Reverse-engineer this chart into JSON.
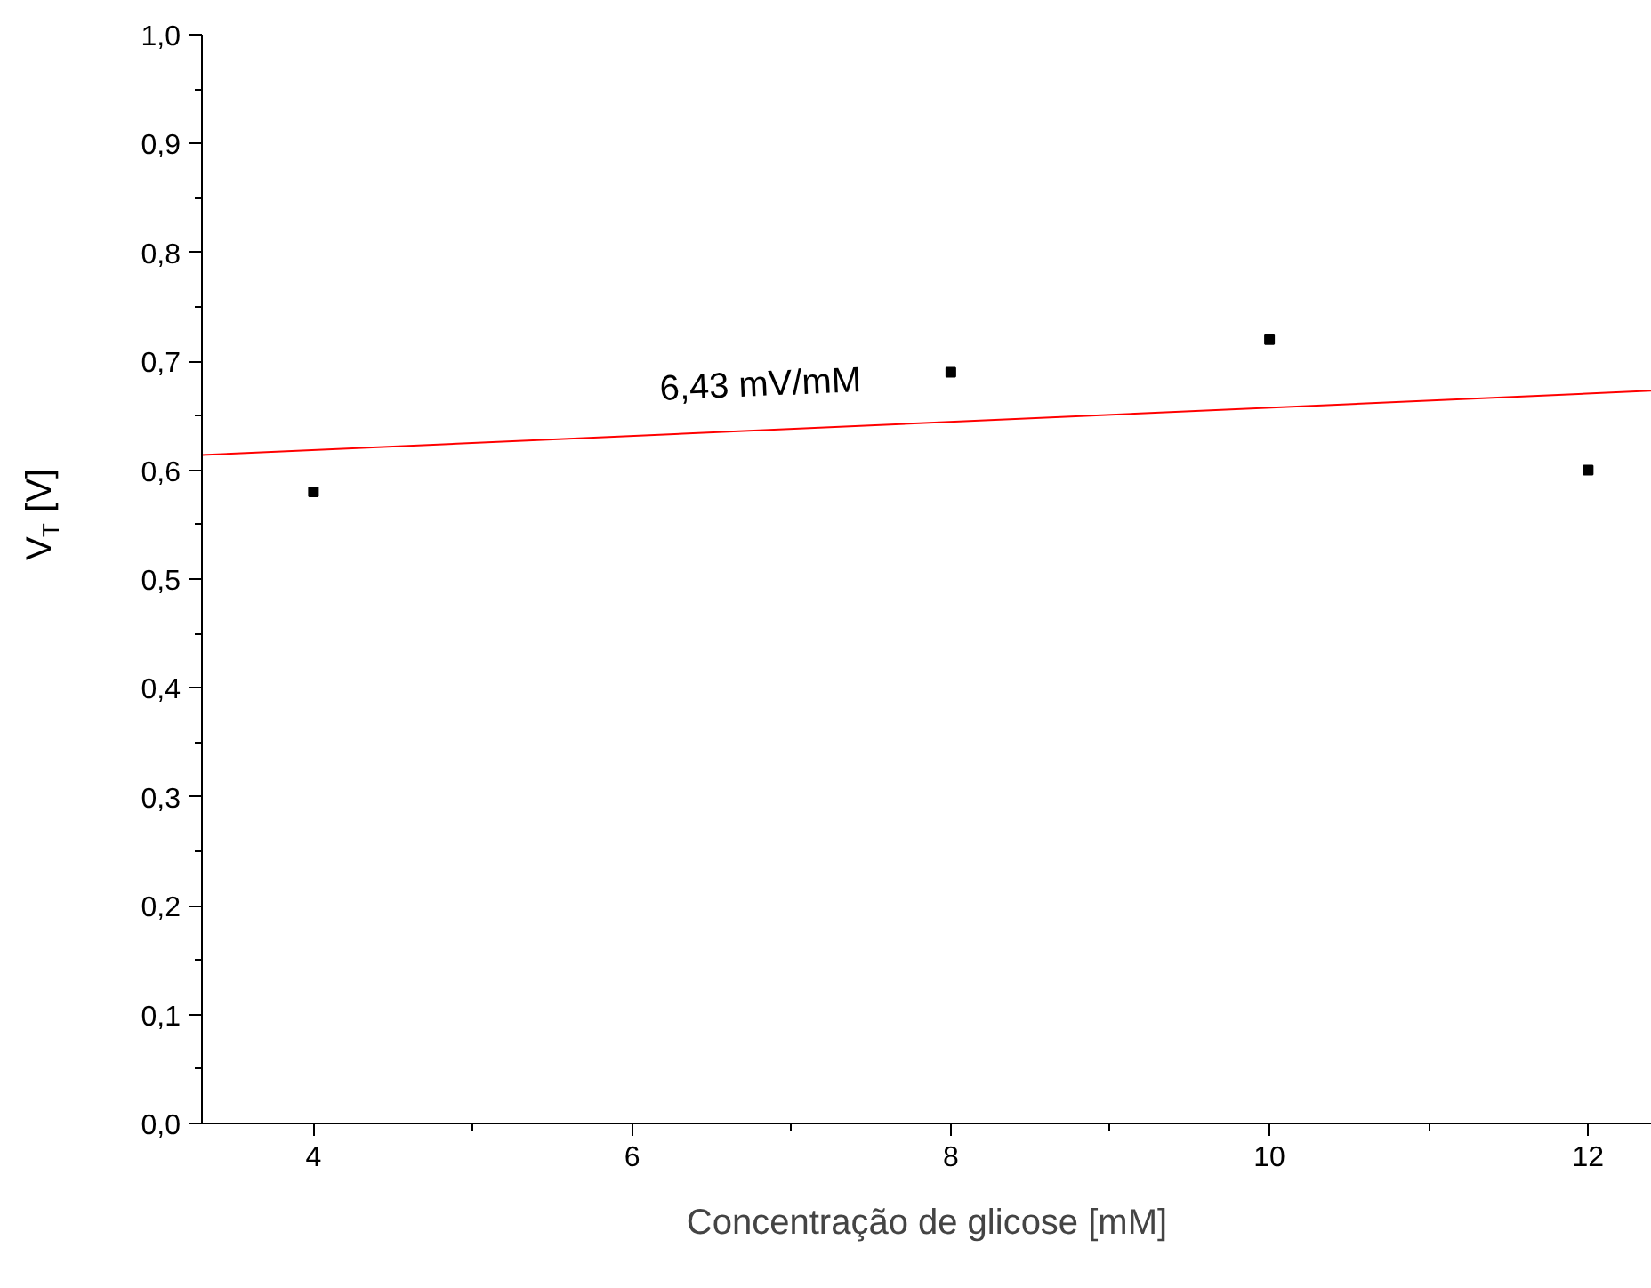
{
  "chart_data": {
    "type": "scatter",
    "xlabel": "Concentração de glicose [mM]",
    "ylabel": "V$_{T}$ [V]",
    "x": [
      4,
      8,
      10,
      12
    ],
    "series": [
      {
        "color": "#000000",
        "marker": "square",
        "values": [
          0.58,
          0.69,
          0.72,
          0.6
        ]
      },
      {
        "type": "line",
        "color": "#ff0000",
        "x": [
          3.3,
          12.4
        ],
        "values": [
          0.614,
          0.673
        ]
      }
    ],
    "annotations": [
      "6,43 mV/mM"
    ],
    "xlim": [
      3.3,
      12.4
    ],
    "ylim": [
      0,
      1.0
    ],
    "xticks": [
      4,
      {
        "value": 5,
        "label": null
      },
      6,
      {
        "value": 7,
        "label": null
      },
      8,
      {
        "value": 9,
        "label": null
      },
      10,
      {
        "value": 11,
        "label": null
      },
      12
    ],
    "yticks": [
      {
        "value": 0,
        "label": "0,0"
      },
      {
        "value": 0.05,
        "label": null
      },
      {
        "value": 0.1,
        "label": "0,1"
      },
      {
        "value": 0.15,
        "label": null
      },
      {
        "value": 0.2,
        "label": "0,2"
      },
      {
        "value": 0.25,
        "label": null
      },
      {
        "value": 0.3,
        "label": "0,3"
      },
      {
        "value": 0.35,
        "label": null
      },
      {
        "value": 0.4,
        "label": "0,4"
      },
      {
        "value": 0.45,
        "label": null
      },
      {
        "value": 0.5,
        "label": "0,5"
      },
      {
        "value": 0.55,
        "label": null
      },
      {
        "value": 0.6,
        "label": "0,6"
      },
      {
        "value": 0.65,
        "label": null
      },
      {
        "value": 0.7,
        "label": "0,7"
      },
      {
        "value": 0.75,
        "label": null
      },
      {
        "value": 0.8,
        "label": "0,8"
      },
      {
        "value": 0.85,
        "label": null
      },
      {
        "value": 0.9,
        "label": "0,9"
      },
      {
        "value": 0.95,
        "label": null
      },
      {
        "value": 1.0,
        "label": "1,0"
      }
    ],
    "grid": false
  }
}
